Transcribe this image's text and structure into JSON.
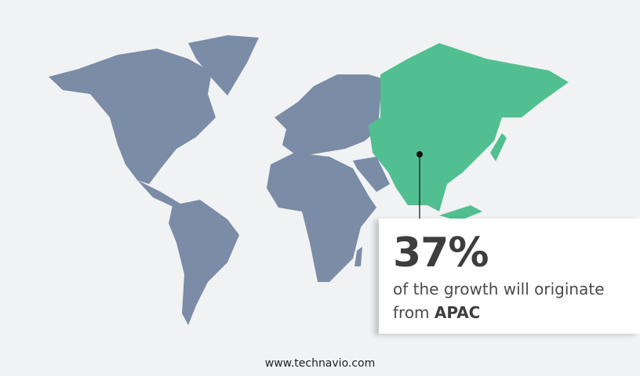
{
  "colors": {
    "background": "#f1f2f4",
    "land": "#7a8ca6",
    "highlight": "#52bf90"
  },
  "callout": {
    "stat": "37%",
    "line1": "of the growth will originate",
    "line2_prefix": "from ",
    "region": "APAC"
  },
  "footer": {
    "url": "www.technavio.com"
  }
}
